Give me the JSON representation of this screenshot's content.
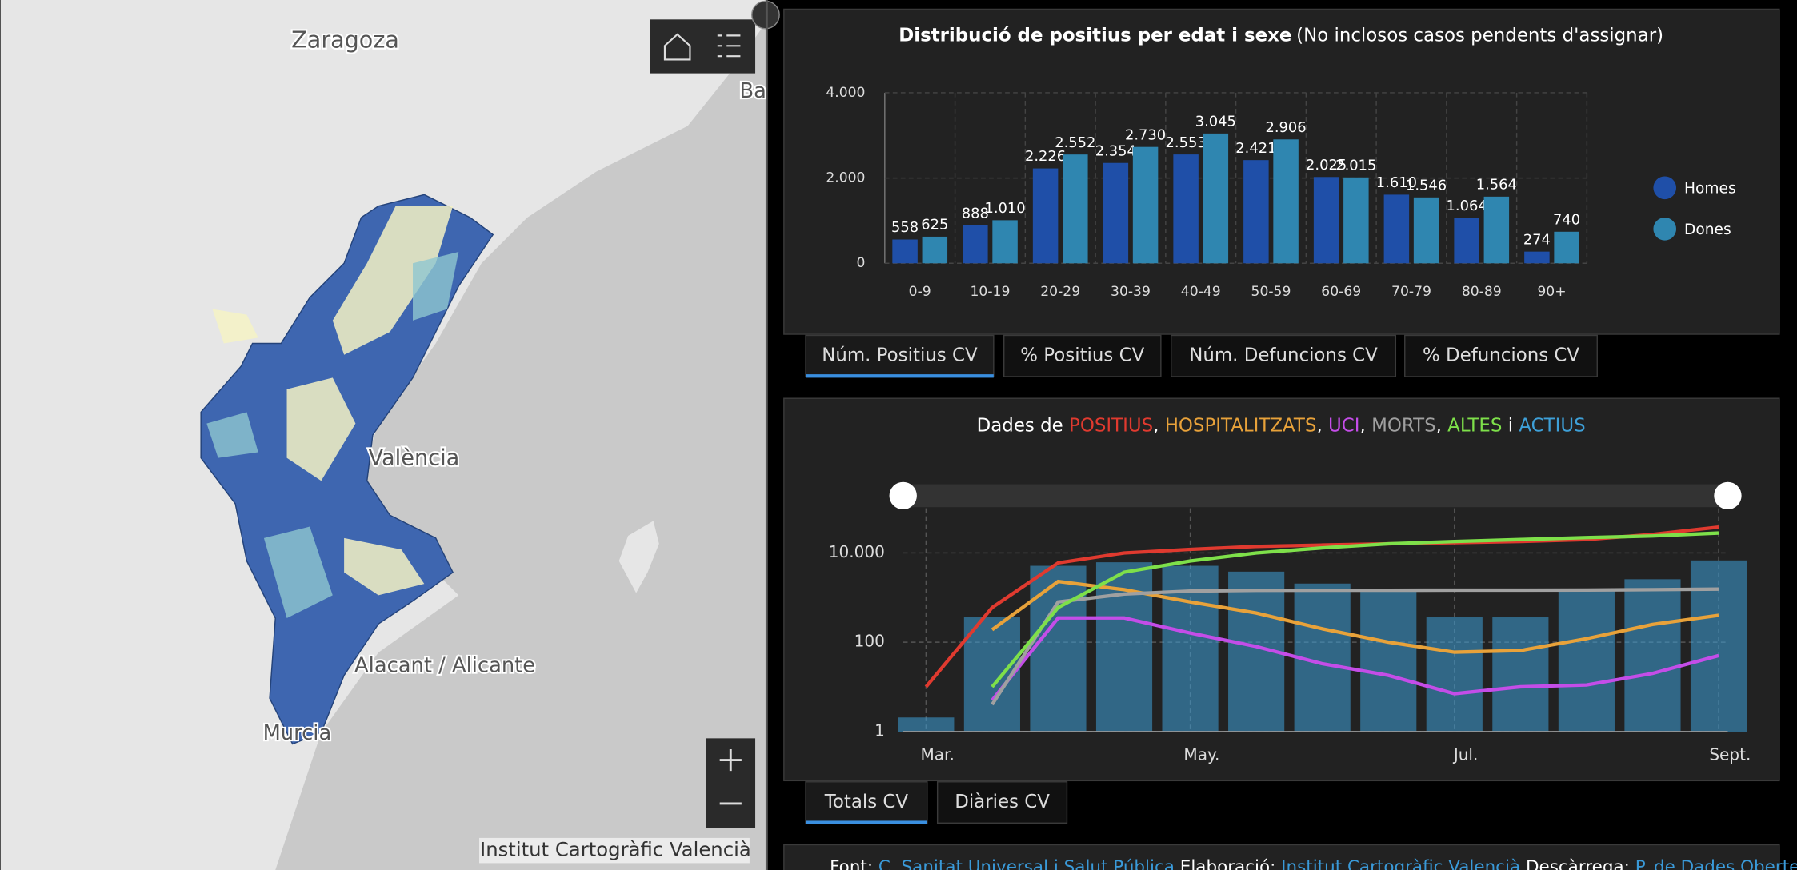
{
  "map": {
    "labels": [
      "Zaragoza",
      "Ba",
      "València",
      "Alacant / Alicante",
      "Murcia"
    ],
    "attribution": "Institut Cartogràfic Valencià"
  },
  "chart_data": [
    {
      "type": "bar",
      "title": "Distribució de positius per edat i sexe",
      "subtitle": "(No inclosos casos pendents d'assignar)",
      "categories": [
        "0-9",
        "10-19",
        "20-29",
        "30-39",
        "40-49",
        "50-59",
        "60-69",
        "70-79",
        "80-89",
        "90+"
      ],
      "series": [
        {
          "name": "Homes",
          "color": "#1f4fa8",
          "values": [
            558,
            888,
            2226,
            2354,
            2553,
            2421,
            2025,
            1610,
            1064,
            274
          ],
          "value_labels": [
            "558",
            "888",
            "2.226",
            "2.354",
            "2.553",
            "2.421",
            "2.025",
            "1.610",
            "1.064",
            "274"
          ]
        },
        {
          "name": "Dones",
          "color": "#2f86b0",
          "values": [
            625,
            1010,
            2552,
            2730,
            3045,
            2906,
            2015,
            1546,
            1564,
            740
          ],
          "value_labels": [
            "625",
            "1.010",
            "2.552",
            "2.730",
            "3.045",
            "2.906",
            "2.015",
            "1.546",
            "1.564",
            "740"
          ]
        }
      ],
      "ylim": [
        0,
        4000
      ],
      "yticks": [
        0,
        {
          "value": 2000,
          "label": "2.000"
        },
        {
          "value": 4000,
          "label": "4.000"
        }
      ],
      "grid": true,
      "legend": "right"
    },
    {
      "type": "line",
      "title_segments": [
        "Dades de ",
        ", ",
        ", ",
        ", ",
        ", ",
        " i "
      ],
      "categories": [
        "Mar.",
        null,
        null,
        null,
        "May.",
        null,
        null,
        null,
        "Jul.",
        null,
        null,
        null,
        "Sept."
      ],
      "log_scale": true,
      "ylim": [
        1,
        100000
      ],
      "yticks": [
        1,
        100,
        {
          "value": 10000,
          "label": "10.000"
        }
      ],
      "grid": true,
      "series": [
        {
          "name": "POSITIUS",
          "color": "#e03a2f",
          "values": [
            10,
            600,
            6000,
            10000,
            12000,
            14000,
            15000,
            16000,
            17000,
            18000,
            20000,
            26000,
            38000
          ]
        },
        {
          "name": "HOSPITALITZATS",
          "color": "#e8a23a",
          "values": [
            null,
            190,
            2300,
            1500,
            800,
            450,
            200,
            100,
            60,
            65,
            120,
            250,
            400
          ]
        },
        {
          "name": "UCI",
          "color": "#c44de8",
          "values": [
            null,
            5,
            350,
            350,
            160,
            80,
            33,
            18,
            7,
            10,
            11,
            20,
            50
          ]
        },
        {
          "name": "MORTS",
          "color": "#a0a0a0",
          "values": [
            null,
            4,
            800,
            1200,
            1400,
            1450,
            1460,
            1460,
            1470,
            1470,
            1480,
            1500,
            1550
          ]
        },
        {
          "name": "ALTES",
          "color": "#7ee04a",
          "values": [
            null,
            10,
            600,
            3700,
            6600,
            10000,
            13000,
            16000,
            18000,
            20000,
            22000,
            24000,
            28000
          ]
        },
        {
          "name": "ACTIUS",
          "color": "#3ea0d8",
          "type": "bar",
          "values": [
            2,
            350,
            5000,
            6000,
            5000,
            3700,
            2000,
            1500,
            350,
            350,
            1500,
            2500,
            6600
          ]
        }
      ]
    }
  ],
  "tabs_top": [
    "Núm. Positius CV",
    "% Positius CV",
    "Núm. Defuncions CV",
    "% Defuncions CV"
  ],
  "tabs_bottom": [
    "Totals CV",
    "Diàries CV"
  ],
  "footer": [
    "Font: ",
    "C. Sanitat Universal i Salut Pública",
    " Elaboració: ",
    "Institut Cartogràfic Valencià",
    " Descàrrega: ",
    "P. de Dades Obertes"
  ]
}
